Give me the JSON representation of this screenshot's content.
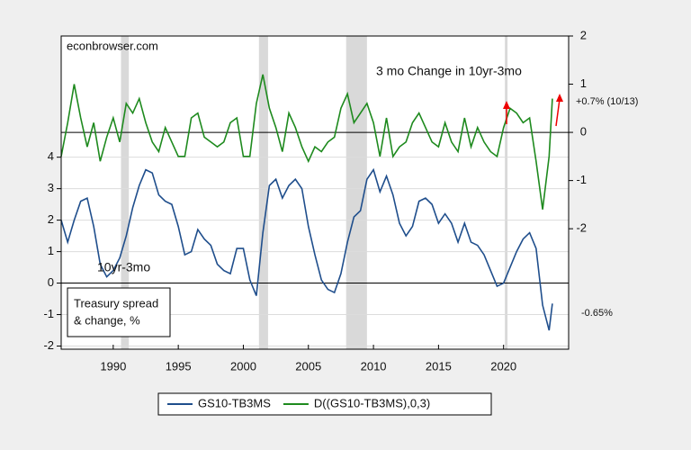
{
  "chart_data": {
    "type": "line",
    "source": "econbrowser.com",
    "annotations": [
      "3 mo Change in 10yr-3mo",
      "10yr-3mo",
      "+0.7% (10/13)",
      "-0.65%"
    ],
    "note": [
      "Treasury spread",
      "& change, %"
    ],
    "x": [
      1986.0,
      1986.5,
      1987.0,
      1987.5,
      1988.0,
      1988.5,
      1989.0,
      1989.5,
      1990.0,
      1990.5,
      1991.0,
      1991.5,
      1992.0,
      1992.5,
      1993.0,
      1993.5,
      1994.0,
      1994.5,
      1995.0,
      1995.5,
      1996.0,
      1996.5,
      1997.0,
      1997.5,
      1998.0,
      1998.5,
      1999.0,
      1999.5,
      2000.0,
      2000.5,
      2001.0,
      2001.5,
      2002.0,
      2002.5,
      2003.0,
      2003.5,
      2004.0,
      2004.5,
      2005.0,
      2005.5,
      2006.0,
      2006.5,
      2007.0,
      2007.5,
      2008.0,
      2008.5,
      2009.0,
      2009.5,
      2010.0,
      2010.5,
      2011.0,
      2011.5,
      2012.0,
      2012.5,
      2013.0,
      2013.5,
      2014.0,
      2014.5,
      2015.0,
      2015.5,
      2016.0,
      2016.5,
      2017.0,
      2017.5,
      2018.0,
      2018.5,
      2019.0,
      2019.5,
      2020.0,
      2020.5,
      2021.0,
      2021.5,
      2022.0,
      2022.5,
      2023.0,
      2023.5,
      2023.75
    ],
    "series": [
      {
        "name": "GS10-TB3MS",
        "color": "#1f4e8c",
        "axis": "y",
        "values": [
          2.0,
          1.3,
          2.0,
          2.6,
          2.7,
          1.8,
          0.6,
          0.2,
          0.4,
          0.8,
          1.5,
          2.4,
          3.1,
          3.6,
          3.5,
          2.8,
          2.6,
          2.5,
          1.8,
          0.9,
          1.0,
          1.7,
          1.4,
          1.2,
          0.6,
          0.4,
          0.3,
          1.1,
          1.1,
          0.1,
          -0.4,
          1.6,
          3.1,
          3.3,
          2.7,
          3.1,
          3.3,
          3.0,
          1.8,
          0.9,
          0.1,
          -0.2,
          -0.3,
          0.3,
          1.3,
          2.1,
          2.3,
          3.3,
          3.6,
          2.9,
          3.4,
          2.8,
          1.9,
          1.5,
          1.8,
          2.6,
          2.7,
          2.5,
          1.9,
          2.2,
          1.9,
          1.3,
          1.9,
          1.3,
          1.2,
          0.9,
          0.4,
          -0.1,
          0.0,
          0.5,
          1.0,
          1.4,
          1.6,
          1.1,
          -0.7,
          -1.5,
          -0.65
        ]
      },
      {
        "name": "D((GS10-TB3MS),0,3)",
        "color": "#1e8a1e",
        "axis": "y2",
        "values": [
          -0.5,
          0.2,
          1.0,
          0.3,
          -0.3,
          0.2,
          -0.6,
          -0.1,
          0.3,
          -0.2,
          0.6,
          0.4,
          0.7,
          0.2,
          -0.2,
          -0.4,
          0.1,
          -0.2,
          -0.5,
          -0.5,
          0.3,
          0.4,
          -0.1,
          -0.2,
          -0.3,
          -0.2,
          0.2,
          0.3,
          -0.5,
          -0.5,
          0.6,
          1.2,
          0.5,
          0.1,
          -0.4,
          0.4,
          0.1,
          -0.3,
          -0.6,
          -0.3,
          -0.4,
          -0.2,
          -0.1,
          0.5,
          0.8,
          0.2,
          0.4,
          0.6,
          0.2,
          -0.5,
          0.3,
          -0.5,
          -0.3,
          -0.2,
          0.2,
          0.4,
          0.1,
          -0.2,
          -0.3,
          0.2,
          -0.2,
          -0.4,
          0.3,
          -0.3,
          0.1,
          -0.2,
          -0.4,
          -0.5,
          0.1,
          0.5,
          0.4,
          0.2,
          0.3,
          -0.6,
          -1.6,
          -0.5,
          0.7
        ]
      }
    ],
    "recessions": [
      [
        1990.6,
        1991.2
      ],
      [
        2001.2,
        2001.9
      ],
      [
        2007.9,
        2009.5
      ],
      [
        2020.1,
        2020.3
      ]
    ],
    "xlim": [
      1986,
      2025
    ],
    "xticks": [
      1990,
      1995,
      2000,
      2005,
      2010,
      2015,
      2020
    ],
    "ylim": [
      -2.1,
      7.85
    ],
    "yticks": [
      -2,
      -1,
      0,
      1,
      2,
      3,
      4
    ],
    "y2lim": [
      -4.5,
      2
    ],
    "y2ticks": [
      -2,
      -1,
      0,
      1,
      2
    ],
    "grid": true,
    "legend": "bottom"
  }
}
